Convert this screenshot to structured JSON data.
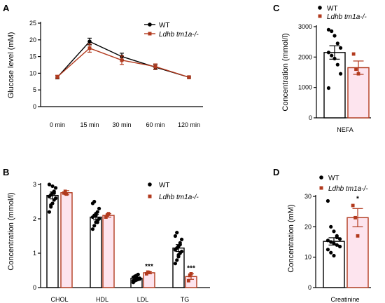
{
  "colors": {
    "wt": "#000000",
    "ko": "#b23a1e",
    "ko_fill": "#fde4ee"
  },
  "chart_data": [
    {
      "panel": "A",
      "type": "line",
      "ylabel": "Glucose level (mM)",
      "xlabel": "",
      "categories": [
        "0 min",
        "15 min",
        "30 min",
        "60 min",
        "120 min"
      ],
      "ylim": [
        0,
        25
      ],
      "yticks": [
        "0",
        "5",
        "10",
        "15",
        "20",
        "25"
      ],
      "legend": [
        "WT",
        "Ldhb tm1a-/-"
      ],
      "legend_position": "top-right",
      "series": [
        {
          "name": "WT",
          "values": [
            8.8,
            19.5,
            15.0,
            11.8,
            8.8
          ],
          "err": [
            0.5,
            1.0,
            1.0,
            0.7,
            0.4
          ]
        },
        {
          "name": "Ldhb tm1a-/-",
          "values": [
            8.9,
            17.5,
            13.9,
            12.0,
            8.8
          ],
          "err": [
            0.5,
            1.2,
            1.3,
            0.8,
            0.4
          ]
        }
      ]
    },
    {
      "panel": "B",
      "type": "bar",
      "ylabel": "Concentration (mmol/l)",
      "categories": [
        "CHOL",
        "HDL",
        "LDL",
        "TG"
      ],
      "ylim": [
        0,
        3
      ],
      "yticks": [
        "0",
        "1",
        "2",
        "3"
      ],
      "legend": [
        "WT",
        "Ldhb tm1a-/-"
      ],
      "legend_position": "top-right",
      "series": [
        {
          "name": "WT",
          "values": [
            2.68,
            2.05,
            0.27,
            1.15
          ],
          "err": [
            0.1,
            0.08,
            0.03,
            0.1
          ]
        },
        {
          "name": "Ldhb tm1a-/-",
          "values": [
            2.76,
            2.1,
            0.43,
            0.32
          ],
          "err": [
            0.06,
            0.05,
            0.03,
            0.08
          ]
        }
      ],
      "points": [
        [
          2.2,
          2.35,
          2.45,
          2.55,
          2.6,
          2.65,
          2.7,
          2.75,
          2.8,
          2.9,
          3.0,
          2.4,
          2.95,
          2.75
        ],
        [
          2.75,
          2.8,
          2.72
        ],
        [
          1.7,
          1.8,
          1.9,
          1.95,
          2.0,
          2.05,
          2.1,
          2.15,
          2.2,
          2.3,
          2.45,
          2.5,
          2.1,
          1.9
        ],
        [
          2.05,
          2.1,
          2.15
        ],
        [
          0.15,
          0.2,
          0.22,
          0.25,
          0.27,
          0.3,
          0.33,
          0.35,
          0.38,
          0.25,
          0.2,
          0.3,
          0.28,
          0.24
        ],
        [
          0.4,
          0.45,
          0.44
        ],
        [
          0.7,
          0.8,
          0.9,
          1.0,
          1.05,
          1.1,
          1.15,
          1.2,
          1.3,
          1.4,
          1.5,
          1.6,
          0.95,
          1.25
        ],
        [
          0.2,
          0.35,
          0.4
        ]
      ],
      "annotations": [
        {
          "text": "***",
          "category": "LDL",
          "y": 0.55
        },
        {
          "text": "***",
          "category": "TG",
          "y": 0.5
        }
      ]
    },
    {
      "panel": "C",
      "type": "bar",
      "ylabel": "Concentration (mmol/l)",
      "categories": [
        "NEFA"
      ],
      "ylim": [
        0,
        3000
      ],
      "yticks": [
        "0",
        "1000",
        "2000",
        "3000"
      ],
      "legend": [
        "WT",
        "Ldhb tm1a-/-"
      ],
      "legend_position": "top",
      "series": [
        {
          "name": "WT",
          "values": [
            2150
          ],
          "err": [
            220
          ]
        },
        {
          "name": "Ldhb tm1a-/-",
          "values": [
            1650
          ],
          "err": [
            220
          ]
        }
      ],
      "points": [
        [
          2900,
          2850,
          2700,
          2450,
          2300,
          2150,
          2050,
          1950,
          1750,
          1450,
          980
        ],
        [
          2100,
          1600,
          1450
        ]
      ]
    },
    {
      "panel": "D",
      "type": "bar",
      "ylabel": "Concentration (mM)",
      "categories": [
        "Creatinine"
      ],
      "ylim": [
        0,
        30
      ],
      "yticks": [
        "0",
        "10",
        "20",
        "30"
      ],
      "legend": [
        "WT",
        "Ldhb tm1a-/-"
      ],
      "legend_position": "top",
      "series": [
        {
          "name": "WT",
          "values": [
            15.2
          ],
          "err": [
            1.2
          ]
        },
        {
          "name": "Ldhb tm1a-/-",
          "values": [
            23.0
          ],
          "err": [
            3.0
          ]
        }
      ],
      "points": [
        [
          28.5,
          20,
          18.5,
          17,
          16,
          15.5,
          15,
          14.5,
          14,
          13.5,
          12.5,
          11.5,
          10.5,
          16.5
        ],
        [
          27,
          23,
          17
        ]
      ],
      "annotations": [
        {
          "text": "*",
          "category": "Creatinine",
          "y": 28.5
        }
      ]
    }
  ]
}
